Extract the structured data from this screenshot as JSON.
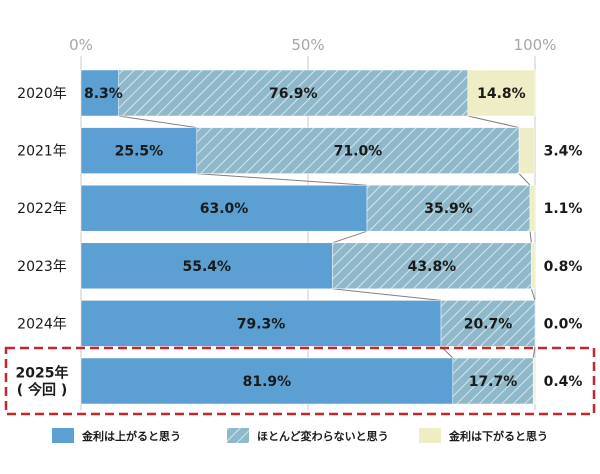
{
  "chart_data": {
    "type": "bar",
    "orientation": "horizontal",
    "stacked": "100%",
    "categories": [
      "2020年",
      "2021年",
      "2022年",
      "2023年",
      "2024年",
      "2025年\n( 今回 )"
    ],
    "series": [
      {
        "name": "金利は上がると思う",
        "values": [
          8.3,
          25.5,
          63.0,
          55.4,
          79.3,
          81.9
        ],
        "color": "#5b9fd3",
        "pattern": "solid"
      },
      {
        "name": "ほとんど変わらないと思う",
        "values": [
          76.9,
          71.0,
          35.9,
          43.8,
          20.7,
          17.7
        ],
        "color": "#8fb8ca",
        "pattern": "diagonal-hatch"
      },
      {
        "name": "金利は下がると思う",
        "values": [
          14.8,
          3.4,
          1.1,
          0.8,
          0.0,
          0.4
        ],
        "color": "#eeedc6",
        "pattern": "solid"
      }
    ],
    "value_labels": [
      [
        "8.3%",
        "76.9%",
        "14.8%"
      ],
      [
        "25.5%",
        "71.0%",
        "3.4%"
      ],
      [
        "63.0%",
        "35.9%",
        "1.1%"
      ],
      [
        "55.4%",
        "43.8%",
        "0.8%"
      ],
      [
        "79.3%",
        "20.7%",
        "0.0%"
      ],
      [
        "81.9%",
        "17.7%",
        "0.4%"
      ]
    ],
    "xticks": [
      "0%",
      "50%",
      "100%"
    ],
    "xlim": [
      0,
      100
    ],
    "gridlines": true,
    "series_connector_lines": true,
    "highlighted_category": "2025年\n( 今回 )",
    "highlight_color": "#c0282d",
    "legend_position": "bottom"
  }
}
